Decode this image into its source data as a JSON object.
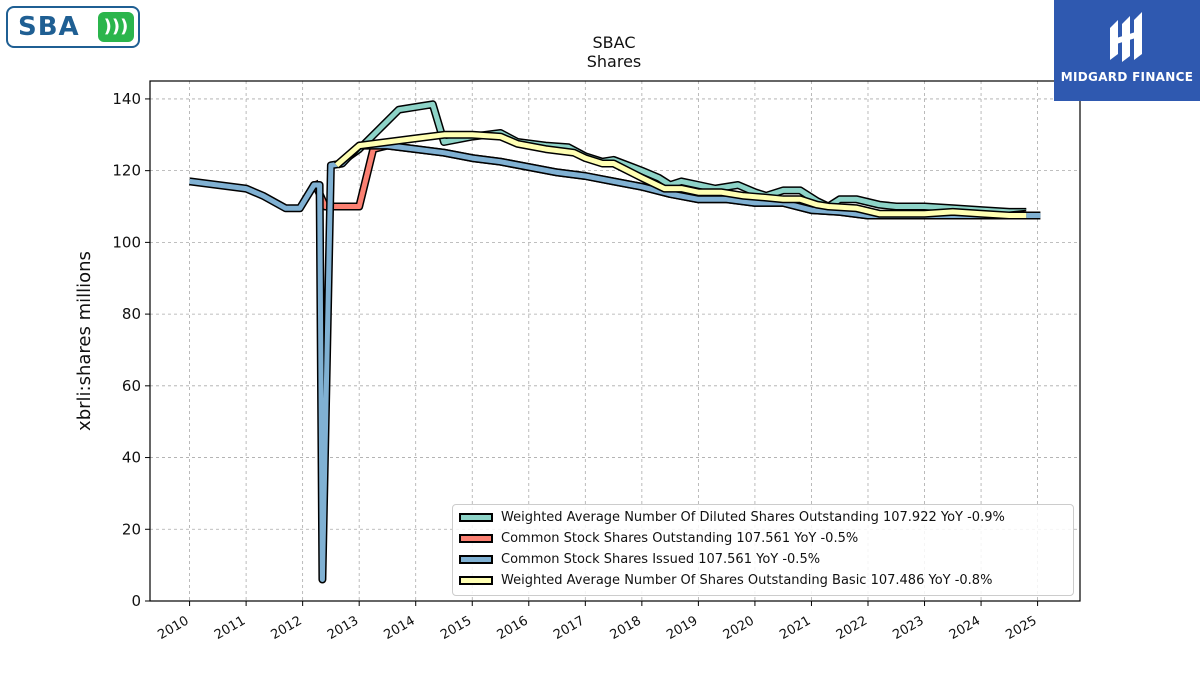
{
  "logos": {
    "left_text": "SBA",
    "right_text": "MIDGARD FINANCE"
  },
  "chart_data": {
    "type": "line",
    "title": "SBAC",
    "subtitle": "Shares",
    "ylabel": "xbrli:shares millions",
    "xlabel": "",
    "ylim": [
      0,
      145
    ],
    "xlim": [
      2009.3,
      2025.75
    ],
    "yticks": [
      0,
      20,
      40,
      60,
      80,
      100,
      120,
      140
    ],
    "xticks": [
      "2010",
      "2011",
      "2012",
      "2013",
      "2014",
      "2015",
      "2016",
      "2017",
      "2018",
      "2019",
      "2020",
      "2021",
      "2022",
      "2023",
      "2024",
      "2025"
    ],
    "grid": true,
    "legend_position": "lower-right",
    "series": [
      {
        "name": "Weighted Average Number Of Diluted Shares Outstanding  107.922 YoY -0.9%",
        "color": "#8dd3c7",
        "points": [
          [
            2012.6,
            121.5
          ],
          [
            2013.0,
            126
          ],
          [
            2013.7,
            137
          ],
          [
            2014.1,
            138
          ],
          [
            2014.3,
            138.5
          ],
          [
            2014.5,
            128
          ],
          [
            2015.0,
            129.5
          ],
          [
            2015.5,
            130.5
          ],
          [
            2015.8,
            128
          ],
          [
            2016.3,
            127
          ],
          [
            2016.7,
            126.5
          ],
          [
            2017.0,
            124
          ],
          [
            2017.3,
            122.5
          ],
          [
            2017.5,
            123
          ],
          [
            2018.0,
            120
          ],
          [
            2018.3,
            118
          ],
          [
            2018.5,
            116
          ],
          [
            2018.7,
            117
          ],
          [
            2019.0,
            116
          ],
          [
            2019.3,
            115
          ],
          [
            2019.7,
            116
          ],
          [
            2020.0,
            114
          ],
          [
            2020.2,
            113
          ],
          [
            2020.5,
            114.5
          ],
          [
            2020.8,
            114.5
          ],
          [
            2021.1,
            111.5
          ],
          [
            2021.3,
            110
          ],
          [
            2021.5,
            112
          ],
          [
            2021.8,
            112
          ],
          [
            2022.2,
            110.5
          ],
          [
            2022.5,
            110
          ],
          [
            2023.0,
            110
          ],
          [
            2023.5,
            109.5
          ],
          [
            2024.0,
            109
          ],
          [
            2024.5,
            108.5
          ],
          [
            2024.8,
            108.5
          ]
        ]
      },
      {
        "name": "Common Stock Shares Outstanding  107.561 YoY -0.5%",
        "color": "#fb8072",
        "points": [
          [
            2012.2,
            117
          ],
          [
            2012.4,
            110
          ],
          [
            2012.7,
            110
          ],
          [
            2013.0,
            110
          ],
          [
            2013.25,
            126
          ],
          [
            2013.5,
            127
          ],
          [
            2014.0,
            126
          ],
          [
            2014.5,
            125
          ],
          [
            2015.0,
            123.5
          ],
          [
            2015.5,
            122.5
          ],
          [
            2016.0,
            121
          ],
          [
            2016.5,
            119.5
          ],
          [
            2017.0,
            118.5
          ],
          [
            2017.5,
            117
          ],
          [
            2018.0,
            115.5
          ],
          [
            2018.5,
            113.5
          ],
          [
            2019.0,
            112
          ],
          [
            2019.5,
            112
          ],
          [
            2020.0,
            111
          ],
          [
            2020.5,
            111
          ],
          [
            2021.0,
            109
          ],
          [
            2021.5,
            108.5
          ],
          [
            2022.0,
            107.5
          ],
          [
            2022.5,
            107.5
          ],
          [
            2023.0,
            107.5
          ],
          [
            2023.5,
            107.5
          ],
          [
            2024.0,
            107.5
          ],
          [
            2024.5,
            107.5
          ],
          [
            2024.8,
            108
          ]
        ]
      },
      {
        "name": "Common Stock Shares Issued  107.561 YoY -0.5%",
        "color": "#80b1d3",
        "points": [
          [
            2010.0,
            117
          ],
          [
            2011.0,
            115
          ],
          [
            2011.3,
            113
          ],
          [
            2011.7,
            109.5
          ],
          [
            2011.95,
            109.5
          ],
          [
            2012.2,
            116
          ],
          [
            2012.3,
            116
          ],
          [
            2012.35,
            6
          ],
          [
            2012.5,
            121.5
          ],
          [
            2012.7,
            122
          ],
          [
            2013.0,
            127
          ],
          [
            2013.5,
            127
          ],
          [
            2014.0,
            126
          ],
          [
            2014.5,
            125
          ],
          [
            2015.0,
            123.5
          ],
          [
            2015.5,
            122.5
          ],
          [
            2016.0,
            121
          ],
          [
            2016.5,
            119.5
          ],
          [
            2017.0,
            118.5
          ],
          [
            2017.5,
            117
          ],
          [
            2018.0,
            115.5
          ],
          [
            2018.5,
            113.5
          ],
          [
            2019.0,
            112
          ],
          [
            2019.5,
            112
          ],
          [
            2020.0,
            111
          ],
          [
            2020.5,
            111
          ],
          [
            2021.0,
            109
          ],
          [
            2021.5,
            108.5
          ],
          [
            2022.0,
            107.5
          ],
          [
            2022.5,
            107.5
          ],
          [
            2023.0,
            107.5
          ],
          [
            2023.5,
            107.5
          ],
          [
            2024.0,
            107.5
          ],
          [
            2024.5,
            107.5
          ],
          [
            2025.05,
            107.5
          ]
        ]
      },
      {
        "name": "Weighted Average Number Of Shares Outstanding Basic  107.486 YoY -0.8%",
        "color": "#ffffb3",
        "points": [
          [
            2012.6,
            121.5
          ],
          [
            2013.0,
            127
          ],
          [
            2013.5,
            128
          ],
          [
            2014.0,
            129
          ],
          [
            2014.5,
            130
          ],
          [
            2015.0,
            130
          ],
          [
            2015.5,
            129.5
          ],
          [
            2015.8,
            127.5
          ],
          [
            2016.3,
            126
          ],
          [
            2016.8,
            125
          ],
          [
            2017.0,
            123.5
          ],
          [
            2017.3,
            122
          ],
          [
            2017.5,
            122
          ],
          [
            2018.0,
            118
          ],
          [
            2018.4,
            115
          ],
          [
            2018.7,
            115
          ],
          [
            2019.0,
            114
          ],
          [
            2019.4,
            114
          ],
          [
            2019.8,
            113
          ],
          [
            2020.2,
            112.5
          ],
          [
            2020.5,
            112
          ],
          [
            2020.8,
            112
          ],
          [
            2021.1,
            110.5
          ],
          [
            2021.3,
            110
          ],
          [
            2021.8,
            109.5
          ],
          [
            2022.2,
            108
          ],
          [
            2022.5,
            108
          ],
          [
            2023.0,
            108
          ],
          [
            2023.5,
            108.5
          ],
          [
            2024.0,
            108
          ],
          [
            2024.5,
            107.5
          ],
          [
            2024.8,
            107.5
          ]
        ]
      }
    ]
  }
}
